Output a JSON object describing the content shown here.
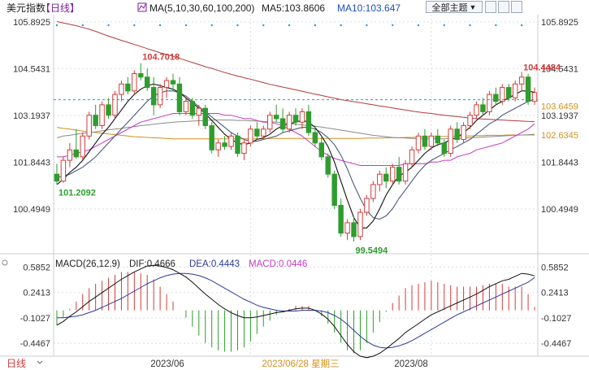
{
  "header": {
    "title": "美元指数",
    "period": "【日线】",
    "ma_label": "MA(5,10,30,60,100,200)",
    "ma5_label": "MA5:103.8606",
    "ma10_label": "MA10:103.647",
    "theme_selector": "全部主题",
    "theme_arrow": "▼"
  },
  "colors": {
    "up": "#d23c3c",
    "down": "#2e9c2e",
    "ma5": "#111111",
    "ma10": "#4a5a7a",
    "ma30": "#c43cc4",
    "ma60": "#8a8a8a",
    "ma100": "#d4901c",
    "ma200": "#b43a3a",
    "price_line": "#2a9cc8",
    "grid": "#d9dde3",
    "axis_text": "#333333",
    "header_purple": "#7a1fa2",
    "header_blue": "#1f4fbf",
    "macd_dif": "#111111",
    "macd_dea": "#2a3a9a",
    "macd_hist_label": "#c43cc4",
    "date_highlight": "#d4901c",
    "footer_label": "#d23c3c"
  },
  "price_axis": {
    "ticks": [
      "105.8925",
      "104.5431",
      "103.1937",
      "101.8443",
      "100.4949"
    ],
    "current_price": "103.6459",
    "ma100_value": "102.6345"
  },
  "annotations": {
    "high_1": "104.7018",
    "high_2": "104.4484",
    "low_1": "101.2092",
    "low_2": "99.5494"
  },
  "macd": {
    "label": "MACD(26,12,9)",
    "dif_label": "DIF:0.4666",
    "dea_label": "DEA:0.4443",
    "macd_label": "MACD:0.0446",
    "ticks": [
      "0.5852",
      "0.2413",
      "-0.1027",
      "-0.4467"
    ]
  },
  "footer": {
    "period_label": "日线",
    "dates": [
      "2023/06",
      "2023/06/28 星期三",
      "2023/08"
    ]
  },
  "chart_data": {
    "type": "candlestick",
    "title": "美元指数",
    "ylim": [
      99.3,
      106.1
    ],
    "ohlc": [
      [
        101.5,
        101.8,
        101.21,
        101.3
      ],
      [
        101.3,
        102.0,
        101.25,
        101.9
      ],
      [
        101.9,
        102.4,
        101.7,
        102.2
      ],
      [
        102.2,
        102.8,
        101.95,
        102.0
      ],
      [
        102.0,
        102.7,
        101.9,
        102.6
      ],
      [
        102.6,
        103.3,
        102.5,
        103.2
      ],
      [
        103.2,
        103.5,
        102.8,
        102.9
      ],
      [
        102.9,
        103.6,
        102.8,
        103.5
      ],
      [
        103.5,
        103.7,
        103.1,
        103.2
      ],
      [
        103.2,
        103.9,
        103.1,
        103.8
      ],
      [
        103.8,
        104.2,
        103.6,
        104.1
      ],
      [
        104.1,
        104.3,
        103.8,
        103.9
      ],
      [
        103.9,
        104.5,
        103.8,
        104.4
      ],
      [
        104.4,
        104.7,
        104.2,
        104.3
      ],
      [
        104.3,
        104.55,
        103.9,
        104.0
      ],
      [
        104.0,
        104.3,
        103.2,
        103.5
      ],
      [
        103.5,
        104.1,
        103.4,
        104.0
      ],
      [
        104.0,
        104.3,
        103.7,
        104.2
      ],
      [
        104.2,
        104.4,
        103.9,
        104.1
      ],
      [
        104.1,
        104.3,
        103.2,
        103.3
      ],
      [
        103.3,
        103.7,
        103.2,
        103.6
      ],
      [
        103.6,
        103.7,
        103.1,
        103.2
      ],
      [
        103.2,
        103.5,
        102.9,
        103.4
      ],
      [
        103.4,
        103.5,
        102.8,
        102.9
      ],
      [
        102.9,
        103.0,
        102.1,
        102.2
      ],
      [
        102.2,
        102.5,
        102.0,
        102.4
      ],
      [
        102.4,
        102.6,
        102.2,
        102.3
      ],
      [
        102.3,
        102.7,
        102.2,
        102.6
      ],
      [
        102.6,
        102.7,
        102.0,
        102.1
      ],
      [
        102.1,
        102.5,
        101.9,
        102.4
      ],
      [
        102.4,
        102.9,
        102.3,
        102.8
      ],
      [
        102.8,
        103.0,
        102.5,
        102.6
      ],
      [
        102.6,
        102.9,
        102.5,
        102.8
      ],
      [
        102.8,
        103.3,
        102.7,
        103.2
      ],
      [
        103.2,
        103.5,
        103.0,
        103.1
      ],
      [
        103.1,
        103.4,
        102.7,
        102.8
      ],
      [
        102.8,
        103.3,
        102.7,
        103.2
      ],
      [
        103.2,
        103.4,
        102.9,
        103.0
      ],
      [
        103.0,
        103.4,
        102.8,
        103.3
      ],
      [
        103.3,
        103.5,
        102.6,
        102.7
      ],
      [
        102.7,
        102.9,
        102.3,
        102.4
      ],
      [
        102.4,
        102.6,
        101.9,
        102.0
      ],
      [
        102.0,
        102.1,
        101.4,
        101.5
      ],
      [
        101.5,
        101.6,
        100.5,
        100.6
      ],
      [
        100.6,
        100.8,
        99.7,
        99.8
      ],
      [
        99.8,
        100.2,
        99.6,
        100.1
      ],
      [
        100.1,
        100.3,
        99.55,
        99.7
      ],
      [
        99.7,
        100.5,
        99.6,
        100.4
      ],
      [
        100.4,
        100.9,
        100.3,
        100.8
      ],
      [
        100.8,
        101.3,
        100.7,
        101.2
      ],
      [
        101.2,
        101.6,
        101.0,
        101.5
      ],
      [
        101.5,
        101.7,
        101.1,
        101.3
      ],
      [
        101.3,
        101.8,
        101.2,
        101.7
      ],
      [
        101.7,
        102.0,
        101.2,
        101.3
      ],
      [
        101.3,
        101.9,
        101.2,
        101.8
      ],
      [
        101.8,
        102.3,
        101.7,
        102.2
      ],
      [
        102.2,
        102.7,
        102.1,
        102.6
      ],
      [
        102.6,
        102.8,
        102.2,
        102.3
      ],
      [
        102.3,
        102.7,
        102.2,
        102.6
      ],
      [
        102.6,
        102.8,
        102.3,
        102.4
      ],
      [
        102.4,
        102.5,
        102.0,
        102.1
      ],
      [
        102.1,
        102.9,
        102.0,
        102.8
      ],
      [
        102.8,
        103.0,
        102.4,
        102.5
      ],
      [
        102.5,
        103.0,
        102.4,
        102.9
      ],
      [
        102.9,
        103.3,
        102.8,
        103.2
      ],
      [
        103.2,
        103.6,
        103.1,
        103.5
      ],
      [
        103.5,
        103.7,
        103.2,
        103.3
      ],
      [
        103.3,
        103.9,
        103.2,
        103.8
      ],
      [
        103.8,
        104.0,
        103.5,
        103.6
      ],
      [
        103.6,
        104.1,
        103.5,
        104.0
      ],
      [
        104.0,
        104.1,
        103.6,
        103.7
      ],
      [
        103.7,
        104.2,
        103.6,
        104.1
      ],
      [
        104.1,
        104.45,
        103.9,
        104.3
      ],
      [
        104.3,
        104.4,
        103.5,
        103.6
      ],
      [
        103.6,
        104.0,
        103.5,
        103.85
      ]
    ],
    "ma5": [
      101.2,
      101.35,
      101.55,
      101.7,
      101.9,
      102.15,
      102.4,
      102.65,
      102.85,
      103.1,
      103.35,
      103.6,
      103.8,
      103.95,
      104.05,
      104.1,
      104.05,
      104.0,
      103.95,
      103.85,
      103.7,
      103.55,
      103.4,
      103.25,
      103.05,
      102.85,
      102.65,
      102.5,
      102.4,
      102.35,
      102.4,
      102.5,
      102.55,
      102.65,
      102.8,
      102.9,
      102.95,
      103.0,
      103.05,
      103.0,
      102.85,
      102.6,
      102.3,
      101.85,
      101.3,
      100.75,
      100.25,
      99.95,
      99.95,
      100.15,
      100.5,
      100.9,
      101.2,
      101.45,
      101.55,
      101.7,
      101.9,
      102.1,
      102.25,
      102.35,
      102.4,
      102.5,
      102.55,
      102.7,
      102.85,
      103.05,
      103.2,
      103.35,
      103.5,
      103.6,
      103.7,
      103.8,
      103.9,
      103.9,
      103.86
    ],
    "ma10": [
      101.4,
      101.45,
      101.5,
      101.6,
      101.7,
      101.85,
      102.0,
      102.2,
      102.4,
      102.6,
      102.8,
      103.0,
      103.2,
      103.4,
      103.6,
      103.75,
      103.85,
      103.9,
      103.9,
      103.85,
      103.75,
      103.6,
      103.45,
      103.3,
      103.15,
      103.0,
      102.85,
      102.7,
      102.6,
      102.5,
      102.45,
      102.45,
      102.5,
      102.55,
      102.6,
      102.7,
      102.75,
      102.8,
      102.85,
      102.85,
      102.8,
      102.7,
      102.55,
      102.35,
      102.05,
      101.65,
      101.2,
      100.8,
      100.45,
      100.25,
      100.2,
      100.3,
      100.5,
      100.8,
      101.05,
      101.3,
      101.55,
      101.75,
      101.9,
      102.0,
      102.1,
      102.2,
      102.3,
      102.4,
      102.5,
      102.65,
      102.8,
      102.95,
      103.05,
      103.2,
      103.3,
      103.4,
      103.5,
      103.6,
      103.65
    ],
    "ma30": [
      102.0,
      102.0,
      102.05,
      102.1,
      102.15,
      102.2,
      102.3,
      102.4,
      102.5,
      102.6,
      102.7,
      102.8,
      102.9,
      103.0,
      103.05,
      103.1,
      103.15,
      103.2,
      103.25,
      103.25,
      103.25,
      103.25,
      103.25,
      103.25,
      103.25,
      103.25,
      103.2,
      103.2,
      103.15,
      103.1,
      103.1,
      103.05,
      103.0,
      103.0,
      102.95,
      102.9,
      102.8,
      102.7,
      102.6,
      102.45,
      102.3,
      102.15,
      102.05,
      101.95,
      101.9,
      101.85,
      101.8,
      101.75,
      101.75,
      101.75,
      101.75,
      101.75,
      101.75,
      101.75,
      101.8,
      101.8,
      101.8,
      101.8,
      101.85,
      101.85,
      101.9,
      101.9,
      102.0,
      102.05,
      102.1,
      102.2,
      102.25,
      102.3,
      102.35,
      102.4,
      102.5,
      102.6,
      102.7,
      102.8,
      102.95
    ],
    "ma60": [
      102.55,
      102.6,
      102.62,
      102.65,
      102.68,
      102.7,
      102.72,
      102.75,
      102.78,
      102.8,
      102.82,
      102.85,
      102.87,
      102.9,
      102.92,
      102.94,
      102.96,
      102.98,
      103.0,
      103.01,
      103.02,
      103.03,
      103.04,
      103.05,
      103.06,
      103.06,
      103.06,
      103.06,
      103.05,
      103.05,
      103.04,
      103.03,
      103.02,
      103.01,
      103.0,
      102.98,
      102.96,
      102.94,
      102.92,
      102.9,
      102.88,
      102.86,
      102.83,
      102.8,
      102.77,
      102.74,
      102.71,
      102.68,
      102.65,
      102.62,
      102.6,
      102.58,
      102.56,
      102.55,
      102.54,
      102.53,
      102.52,
      102.52,
      102.52,
      102.52,
      102.52,
      102.53,
      102.53,
      102.54,
      102.55,
      102.56,
      102.57,
      102.58,
      102.59,
      102.6,
      102.61,
      102.62,
      102.63,
      102.64,
      102.65
    ],
    "ma100": [
      102.85,
      102.82,
      102.8,
      102.77,
      102.74,
      102.72,
      102.7,
      102.68,
      102.66,
      102.64,
      102.62,
      102.6,
      102.58,
      102.57,
      102.56,
      102.55,
      102.54,
      102.53,
      102.52,
      102.52,
      102.52,
      102.52,
      102.52,
      102.52,
      102.52,
      102.52,
      102.52,
      102.52,
      102.52,
      102.52,
      102.52,
      102.52,
      102.52,
      102.53,
      102.53,
      102.53,
      102.53,
      102.53,
      102.53,
      102.53,
      102.53,
      102.53,
      102.53,
      102.53,
      102.53,
      102.53,
      102.53,
      102.53,
      102.54,
      102.54,
      102.54,
      102.55,
      102.55,
      102.55,
      102.56,
      102.56,
      102.57,
      102.57,
      102.58,
      102.58,
      102.59,
      102.59,
      102.6,
      102.6,
      102.6,
      102.61,
      102.61,
      102.62,
      102.62,
      102.62,
      102.63,
      102.63,
      102.63,
      102.63,
      102.63
    ],
    "ma200": [
      105.9,
      105.86,
      105.82,
      105.78,
      105.73,
      105.68,
      105.62,
      105.55,
      105.48,
      105.42,
      105.36,
      105.3,
      105.24,
      105.18,
      105.12,
      105.06,
      105.0,
      104.95,
      104.9,
      104.84,
      104.78,
      104.72,
      104.66,
      104.6,
      104.55,
      104.49,
      104.43,
      104.38,
      104.33,
      104.28,
      104.24,
      104.19,
      104.14,
      104.09,
      104.05,
      104.01,
      103.97,
      103.93,
      103.89,
      103.85,
      103.81,
      103.77,
      103.73,
      103.69,
      103.65,
      103.62,
      103.59,
      103.56,
      103.53,
      103.5,
      103.47,
      103.44,
      103.41,
      103.38,
      103.35,
      103.32,
      103.29,
      103.27,
      103.25,
      103.22,
      103.2,
      103.18,
      103.16,
      103.14,
      103.12,
      103.1,
      103.09,
      103.08,
      103.07,
      103.06,
      103.05,
      103.04,
      103.03,
      103.02,
      103.02
    ],
    "macd_dif": [
      -0.2,
      -0.15,
      -0.08,
      -0.02,
      0.05,
      0.12,
      0.18,
      0.24,
      0.3,
      0.36,
      0.42,
      0.47,
      0.52,
      0.56,
      0.6,
      0.61,
      0.6,
      0.58,
      0.55,
      0.5,
      0.45,
      0.38,
      0.3,
      0.22,
      0.15,
      0.08,
      0.02,
      -0.03,
      -0.07,
      -0.1,
      -0.1,
      -0.09,
      -0.07,
      -0.05,
      -0.03,
      -0.02,
      0.0,
      0.02,
      0.03,
      0.03,
      0.0,
      -0.05,
      -0.12,
      -0.22,
      -0.34,
      -0.46,
      -0.56,
      -0.62,
      -0.64,
      -0.62,
      -0.58,
      -0.52,
      -0.45,
      -0.38,
      -0.3,
      -0.24,
      -0.18,
      -0.12,
      -0.06,
      -0.02,
      0.02,
      0.06,
      0.1,
      0.14,
      0.18,
      0.22,
      0.27,
      0.32,
      0.36,
      0.4,
      0.42,
      0.46,
      0.5,
      0.49,
      0.4666
    ],
    "macd_dea": [
      -0.1,
      -0.1,
      -0.09,
      -0.08,
      -0.06,
      -0.03,
      0.0,
      0.04,
      0.08,
      0.12,
      0.16,
      0.21,
      0.26,
      0.31,
      0.36,
      0.4,
      0.44,
      0.47,
      0.49,
      0.5,
      0.5,
      0.49,
      0.47,
      0.44,
      0.4,
      0.35,
      0.3,
      0.25,
      0.2,
      0.15,
      0.11,
      0.07,
      0.04,
      0.02,
      0.0,
      -0.01,
      -0.01,
      -0.01,
      0.0,
      0.0,
      0.0,
      -0.01,
      -0.03,
      -0.07,
      -0.12,
      -0.19,
      -0.27,
      -0.35,
      -0.42,
      -0.47,
      -0.5,
      -0.51,
      -0.5,
      -0.48,
      -0.45,
      -0.41,
      -0.36,
      -0.31,
      -0.26,
      -0.21,
      -0.16,
      -0.11,
      -0.06,
      -0.02,
      0.02,
      0.06,
      0.1,
      0.14,
      0.18,
      0.22,
      0.26,
      0.3,
      0.34,
      0.38,
      0.4443
    ],
    "macd_ylim": [
      -0.62,
      0.7
    ]
  }
}
